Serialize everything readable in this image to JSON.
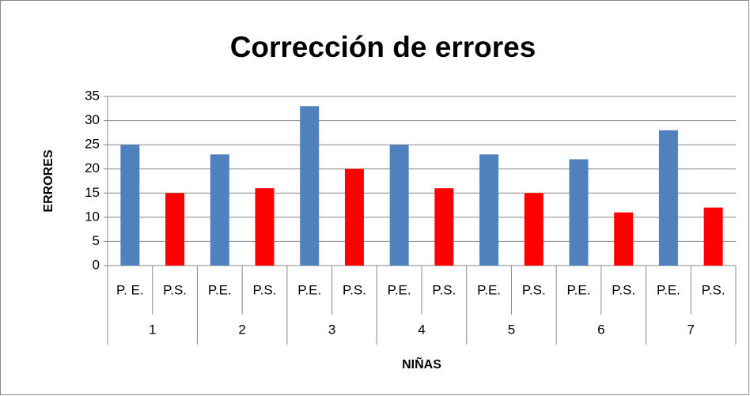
{
  "chart_data": {
    "type": "bar",
    "title": "Corrección de errores",
    "y_label": "ERRORES",
    "x_label": "NIÑAS",
    "categories": [
      "P. E.",
      "P.S.",
      "P.E.",
      "P.S.",
      "P.E.",
      "P.S.",
      "P.E.",
      "P.S.",
      "P.E.",
      "P.S.",
      "P.E.",
      "P.S.",
      "P.E.",
      "P.S."
    ],
    "groups": [
      "1",
      "2",
      "3",
      "4",
      "5",
      "6",
      "7"
    ],
    "values": [
      25,
      15,
      23,
      16,
      33,
      20,
      25,
      16,
      23,
      15,
      22,
      11,
      28,
      12
    ],
    "colors": [
      "#4f81bd",
      "#ff0000",
      "#4f81bd",
      "#ff0000",
      "#4f81bd",
      "#ff0000",
      "#4f81bd",
      "#ff0000",
      "#4f81bd",
      "#ff0000",
      "#4f81bd",
      "#ff0000",
      "#4f81bd",
      "#ff0000"
    ],
    "ylim": [
      0,
      35
    ],
    "yticks": [
      0,
      5,
      10,
      15,
      20,
      25,
      30,
      35
    ],
    "grid": true
  }
}
